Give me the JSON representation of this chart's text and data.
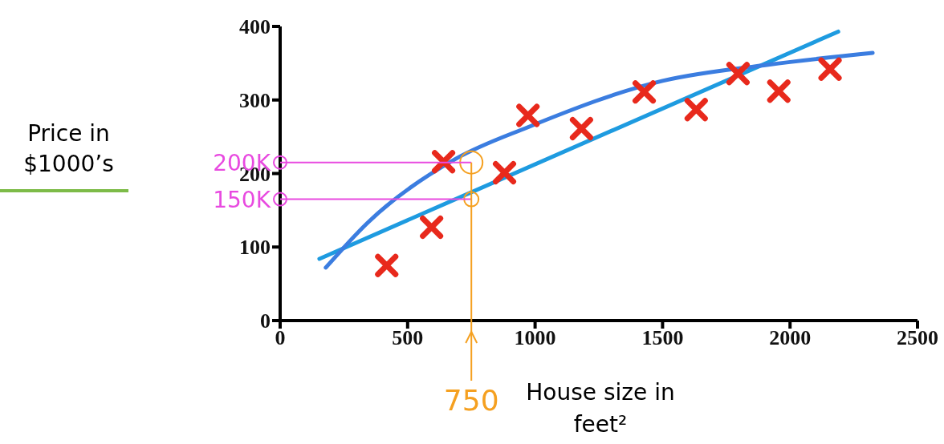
{
  "chart_data": {
    "type": "scatter",
    "xlabel": "House size in feet²",
    "annotations": [
      "Price in $1000’s"
    ],
    "xlim": [
      0,
      2500
    ],
    "xticks": [
      0,
      500,
      1000,
      1500,
      2000,
      2500
    ],
    "ylim": [
      0,
      400
    ],
    "yticks": [
      0,
      100,
      200,
      300,
      400
    ],
    "series": [
      {
        "color": "#e8291c",
        "marker": "cross",
        "x": [
          418,
          594,
          641,
          880,
          972,
          1182,
          1428,
          1632,
          1796,
          1956,
          2157
        ],
        "values": [
          75,
          127,
          216,
          201,
          279,
          261,
          311,
          287,
          336,
          312,
          342
        ]
      },
      {
        "type": "line",
        "color": "#1e9be0",
        "marker": "none",
        "x": [
          154,
          2189
        ],
        "values": [
          84,
          393
        ]
      },
      {
        "type": "line",
        "color": "#3b7de0",
        "marker": "none",
        "x": [
          179,
          343,
          689,
          972,
          1500,
          1915,
          2324
        ],
        "values": [
          72,
          133,
          220,
          263,
          326,
          348,
          364
        ]
      }
    ],
    "ref_lines": [
      {
        "axis": "y",
        "value": 215,
        "label": "200K",
        "color": "#e84ae0"
      },
      {
        "axis": "y",
        "value": 165,
        "label": "150K",
        "color": "#e84ae0"
      },
      {
        "axis": "x",
        "value": 750,
        "label": "750",
        "color": "#f5a020"
      }
    ]
  }
}
